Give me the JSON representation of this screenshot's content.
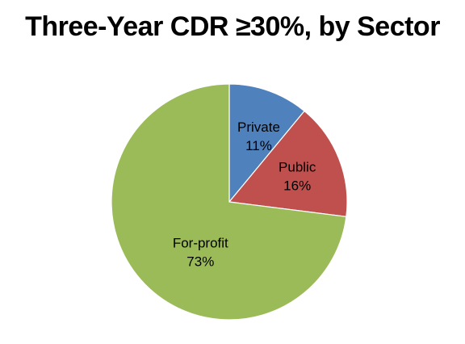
{
  "chart_data": {
    "type": "pie",
    "title": "Three-Year CDR ≥30%, by Sector",
    "categories": [
      "Private",
      "Public",
      "For-profit"
    ],
    "values": [
      11,
      16,
      73
    ],
    "value_labels": [
      "11%",
      "16%",
      "73%"
    ],
    "colors": [
      "#4F81BD",
      "#C0504D",
      "#9BBB59"
    ],
    "start_angle_deg": 0,
    "direction": "clockwise",
    "legend": "none",
    "data_labels": "inside"
  }
}
